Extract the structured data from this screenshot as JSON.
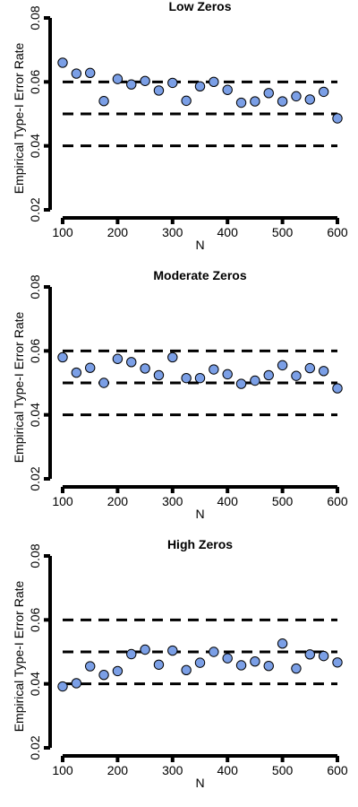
{
  "colors": {
    "point_fill": "#7b9fe6",
    "point_stroke": "#000000",
    "axis": "#000000",
    "reference_lines": "#000000"
  },
  "chart_data": [
    {
      "type": "scatter",
      "title": "Low Zeros",
      "xlabel": "N",
      "ylabel": "Empirical Type-I Error Rate",
      "xlim": [
        100,
        600
      ],
      "ylim": [
        0.02,
        0.08
      ],
      "xticks": [
        100,
        200,
        300,
        400,
        500,
        600
      ],
      "xtick_labels": [
        "100",
        "200",
        "300",
        "400",
        "500",
        "600"
      ],
      "yticks": [
        0.02,
        0.04,
        0.06,
        0.08
      ],
      "ytick_labels": [
        "0.02",
        "0.04",
        "0.06",
        "0.08"
      ],
      "reference_lines": [
        0.04,
        0.05,
        0.06
      ],
      "grid": false,
      "x": [
        100,
        125,
        150,
        175,
        200,
        225,
        250,
        275,
        300,
        325,
        350,
        375,
        400,
        425,
        450,
        475,
        500,
        525,
        550,
        575,
        600
      ],
      "y": [
        0.066,
        0.0626,
        0.0628,
        0.054,
        0.0609,
        0.0592,
        0.0603,
        0.0573,
        0.0597,
        0.0541,
        0.0586,
        0.06,
        0.0575,
        0.0535,
        0.0539,
        0.0565,
        0.0539,
        0.0555,
        0.0545,
        0.0569,
        0.0486
      ]
    },
    {
      "type": "scatter",
      "title": "Moderate Zeros",
      "xlabel": "N",
      "ylabel": "Empirical Type-I Error Rate",
      "xlim": [
        100,
        600
      ],
      "ylim": [
        0.02,
        0.08
      ],
      "xticks": [
        100,
        200,
        300,
        400,
        500,
        600
      ],
      "xtick_labels": [
        "100",
        "200",
        "300",
        "400",
        "500",
        "600"
      ],
      "yticks": [
        0.02,
        0.04,
        0.06,
        0.08
      ],
      "ytick_labels": [
        "0.02",
        "0.04",
        "0.06",
        "0.08"
      ],
      "reference_lines": [
        0.04,
        0.05,
        0.06
      ],
      "grid": false,
      "x": [
        100,
        125,
        150,
        175,
        200,
        225,
        250,
        275,
        300,
        325,
        350,
        375,
        400,
        425,
        450,
        475,
        500,
        525,
        550,
        575,
        600
      ],
      "y": [
        0.058,
        0.0532,
        0.0547,
        0.05,
        0.0575,
        0.0565,
        0.0545,
        0.0524,
        0.058,
        0.0515,
        0.0515,
        0.0542,
        0.0527,
        0.0497,
        0.0507,
        0.0524,
        0.0555,
        0.0522,
        0.0546,
        0.0537,
        0.0483
      ]
    },
    {
      "type": "scatter",
      "title": "High Zeros",
      "xlabel": "N",
      "ylabel": "Empirical Type-I Error Rate",
      "xlim": [
        100,
        600
      ],
      "ylim": [
        0.02,
        0.08
      ],
      "xticks": [
        100,
        200,
        300,
        400,
        500,
        600
      ],
      "xtick_labels": [
        "100",
        "200",
        "300",
        "400",
        "500",
        "600"
      ],
      "yticks": [
        0.02,
        0.04,
        0.06,
        0.08
      ],
      "ytick_labels": [
        "0.02",
        "0.04",
        "0.06",
        "0.08"
      ],
      "reference_lines": [
        0.04,
        0.05,
        0.06
      ],
      "grid": false,
      "x": [
        100,
        125,
        150,
        175,
        200,
        225,
        250,
        275,
        300,
        325,
        350,
        375,
        400,
        425,
        450,
        475,
        500,
        525,
        550,
        575,
        600
      ],
      "y": [
        0.0392,
        0.0402,
        0.0455,
        0.0428,
        0.044,
        0.0493,
        0.0507,
        0.046,
        0.0504,
        0.0443,
        0.0466,
        0.05,
        0.048,
        0.0458,
        0.047,
        0.0456,
        0.0526,
        0.0448,
        0.0492,
        0.0487,
        0.0467
      ]
    }
  ]
}
